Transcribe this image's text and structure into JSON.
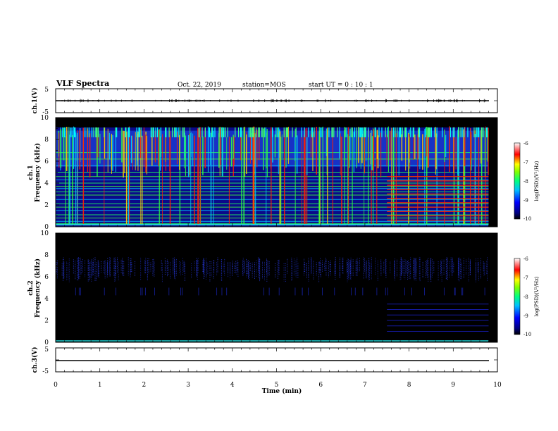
{
  "header": {
    "title": "VLF Spectra",
    "date": "Oct. 22, 2019",
    "station": "station=MOS",
    "start": "start UT =  0 : 10 : 1"
  },
  "colors": {
    "background": "#000000",
    "baseline": "#20d0d0"
  },
  "chart_data": [
    {
      "type": "line",
      "ylabel": "ch.1(V)",
      "ylim": [
        -5,
        5
      ],
      "yticks": [
        "5",
        "-5"
      ],
      "xlim": [
        0,
        10
      ],
      "series": [
        {
          "x": [
            0,
            9.8
          ],
          "y": [
            0,
            0
          ]
        }
      ]
    },
    {
      "type": "heatmap",
      "ylabel": "ch.1",
      "ylabel2": "Frequency (kHz)",
      "ylim": [
        0,
        10
      ],
      "yticks": [
        "0",
        "2",
        "4",
        "6",
        "8",
        "10"
      ],
      "xlim": [
        0,
        10
      ],
      "data_xmax": 9.8,
      "colorbar": {
        "label": "log(PSD)(V²/Hz)",
        "ticks": [
          "-6",
          "-7",
          "-8",
          "-9",
          "-10"
        ],
        "range": [
          -10,
          -6
        ]
      }
    },
    {
      "type": "heatmap",
      "ylabel": "ch.2",
      "ylabel2": "Frequency (kHz)",
      "ylim": [
        0,
        10
      ],
      "yticks": [
        "0",
        "2",
        "4",
        "6",
        "8",
        "10"
      ],
      "xlim": [
        0,
        10
      ],
      "data_xmax": 9.8,
      "colorbar": {
        "label": "log(PSD)(V²/Hz)",
        "ticks": [
          "-6",
          "-7",
          "-8",
          "-9",
          "-10"
        ],
        "range": [
          -10,
          -6
        ]
      }
    },
    {
      "type": "line",
      "ylabel": "ch.3(V)",
      "ylim": [
        -5,
        5
      ],
      "yticks": [
        "5",
        "-5"
      ],
      "xlim": [
        0,
        10
      ],
      "xlabel": "Time (min)",
      "xticks": [
        "0",
        "1",
        "2",
        "3",
        "4",
        "5",
        "6",
        "7",
        "8",
        "9",
        "10"
      ],
      "series": [
        {
          "x": [
            0,
            9.8
          ],
          "y": [
            0,
            0
          ]
        }
      ]
    }
  ]
}
